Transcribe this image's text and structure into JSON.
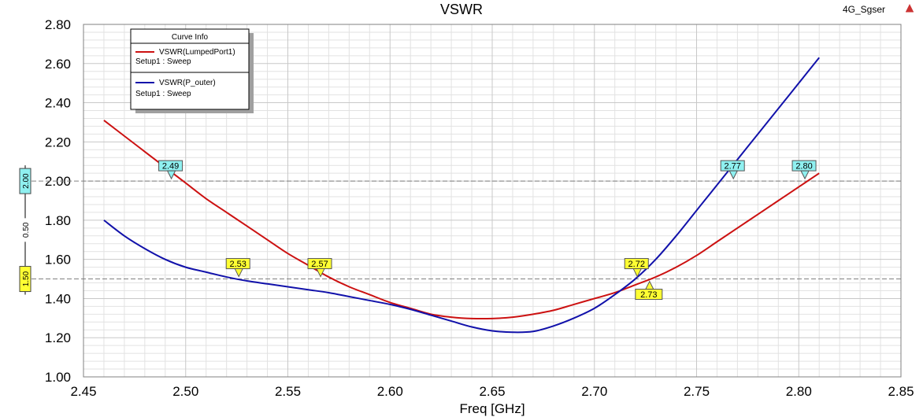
{
  "header": {
    "corner_label": "4G_Sgser"
  },
  "colors": {
    "series_red": "#cc1111",
    "series_blue": "#1111aa",
    "marker_cyan": "#8ff0f0",
    "marker_yellow": "#ffff33",
    "grid": "#c8c8c8",
    "ref_line": "#808080"
  },
  "chart_data": {
    "type": "line",
    "title": "VSWR",
    "xlabel": "Freq [GHz]",
    "ylabel": "",
    "xlim": [
      2.45,
      2.85
    ],
    "ylim": [
      1.0,
      2.8
    ],
    "x_ticks": [
      "2.45",
      "2.50",
      "2.55",
      "2.60",
      "2.65",
      "2.70",
      "2.75",
      "2.80",
      "2.85"
    ],
    "y_ticks": [
      "1.00",
      "1.20",
      "1.40",
      "1.60",
      "1.80",
      "2.00",
      "2.20",
      "2.40",
      "2.60",
      "2.80"
    ],
    "grid": true,
    "legend": {
      "title": "Curve Info",
      "placement": "top-left",
      "entries": [
        {
          "name": "VSWR(LumpedPort1)",
          "sub": "Setup1 : Sweep"
        },
        {
          "name": "VSWR(P_outer)",
          "sub": "Setup1 : Sweep"
        }
      ]
    },
    "series": [
      {
        "name": "VSWR(LumpedPort1)",
        "color_key": "series_red",
        "x": [
          2.46,
          2.47,
          2.48,
          2.49,
          2.5,
          2.51,
          2.52,
          2.53,
          2.54,
          2.55,
          2.56,
          2.57,
          2.58,
          2.59,
          2.6,
          2.61,
          2.62,
          2.63,
          2.64,
          2.65,
          2.66,
          2.67,
          2.68,
          2.69,
          2.7,
          2.71,
          2.72,
          2.73,
          2.74,
          2.75,
          2.76,
          2.77,
          2.78,
          2.79,
          2.8,
          2.81
        ],
        "y": [
          2.31,
          2.23,
          2.15,
          2.07,
          1.99,
          1.91,
          1.84,
          1.77,
          1.7,
          1.63,
          1.57,
          1.51,
          1.46,
          1.42,
          1.38,
          1.35,
          1.32,
          1.305,
          1.298,
          1.298,
          1.305,
          1.32,
          1.34,
          1.37,
          1.4,
          1.43,
          1.47,
          1.51,
          1.56,
          1.62,
          1.69,
          1.76,
          1.83,
          1.9,
          1.97,
          2.04
        ]
      },
      {
        "name": "VSWR(P_outer)",
        "color_key": "series_blue",
        "x": [
          2.46,
          2.47,
          2.48,
          2.49,
          2.5,
          2.51,
          2.52,
          2.53,
          2.54,
          2.55,
          2.56,
          2.57,
          2.58,
          2.59,
          2.6,
          2.61,
          2.62,
          2.63,
          2.64,
          2.65,
          2.66,
          2.67,
          2.68,
          2.69,
          2.7,
          2.71,
          2.72,
          2.73,
          2.74,
          2.75,
          2.76,
          2.77,
          2.78,
          2.79,
          2.8,
          2.81
        ],
        "y": [
          1.8,
          1.72,
          1.655,
          1.6,
          1.56,
          1.535,
          1.51,
          1.49,
          1.475,
          1.46,
          1.445,
          1.43,
          1.41,
          1.39,
          1.37,
          1.345,
          1.315,
          1.285,
          1.255,
          1.235,
          1.228,
          1.232,
          1.26,
          1.3,
          1.35,
          1.42,
          1.5,
          1.6,
          1.72,
          1.85,
          1.98,
          2.11,
          2.24,
          2.37,
          2.5,
          2.63
        ]
      }
    ],
    "ref_lines": [
      {
        "y": 2.0,
        "label": "2.00",
        "color_key": "marker_cyan"
      },
      {
        "y": 1.5,
        "label": "1.50",
        "color_key": "marker_yellow"
      }
    ],
    "side_annotation": {
      "label": "0.50",
      "from": 1.5,
      "to": 2.0
    },
    "markers": [
      {
        "label": "2.49",
        "x": 2.493,
        "y": 2.0,
        "color_key": "marker_cyan",
        "pointer": "down"
      },
      {
        "label": "2.77",
        "x": 2.768,
        "y": 2.0,
        "color_key": "marker_cyan",
        "pointer": "down"
      },
      {
        "label": "2.80",
        "x": 2.803,
        "y": 2.0,
        "color_key": "marker_cyan",
        "pointer": "down"
      },
      {
        "label": "2.53",
        "x": 2.526,
        "y": 1.5,
        "color_key": "marker_yellow",
        "pointer": "down"
      },
      {
        "label": "2.57",
        "x": 2.566,
        "y": 1.5,
        "color_key": "marker_yellow",
        "pointer": "down"
      },
      {
        "label": "2.72",
        "x": 2.721,
        "y": 1.5,
        "color_key": "marker_yellow",
        "pointer": "down"
      },
      {
        "label": "2.73",
        "x": 2.727,
        "y": 1.5,
        "color_key": "marker_yellow",
        "pointer": "up"
      }
    ]
  }
}
